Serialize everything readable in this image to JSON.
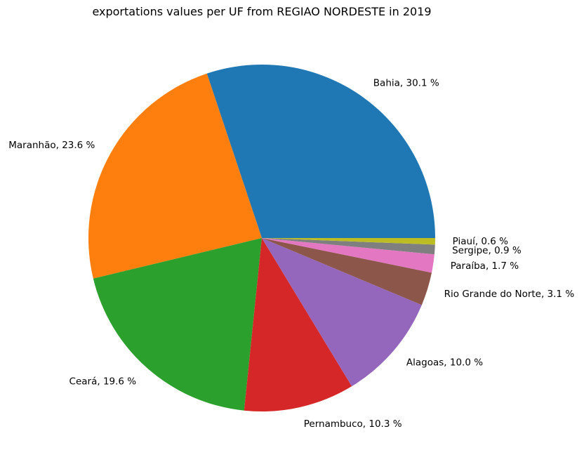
{
  "chart_data": {
    "type": "pie",
    "title": "exportations values per UF from REGIAO NORDESTE in 2019",
    "start_angle_deg": 0,
    "direction": "counterclockwise",
    "legend": "none",
    "slices": [
      {
        "label": "Bahia",
        "value": 30.1,
        "display": "Bahia, 30.1 %",
        "color": "#1f77b4"
      },
      {
        "label": "Maranhão",
        "value": 23.6,
        "display": "Maranhão, 23.6 %",
        "color": "#ff7f0e"
      },
      {
        "label": "Ceará",
        "value": 19.6,
        "display": "Ceará, 19.6 %",
        "color": "#2ca02c"
      },
      {
        "label": "Pernambuco",
        "value": 10.3,
        "display": "Pernambuco, 10.3 %",
        "color": "#d62728"
      },
      {
        "label": "Alagoas",
        "value": 10.0,
        "display": "Alagoas, 10.0 %",
        "color": "#9467bd"
      },
      {
        "label": "Rio Grande do Norte",
        "value": 3.1,
        "display": "Rio Grande do Norte, 3.1 %",
        "color": "#8c564b"
      },
      {
        "label": "Paraíba",
        "value": 1.7,
        "display": "Paraíba, 1.7 %",
        "color": "#e377c2"
      },
      {
        "label": "Sergipe",
        "value": 0.9,
        "display": "Sergipe, 0.9 %",
        "color": "#7f7f7f"
      },
      {
        "label": "Piauí",
        "value": 0.6,
        "display": "Piauí, 0.6 %",
        "color": "#bcbd22"
      }
    ]
  }
}
